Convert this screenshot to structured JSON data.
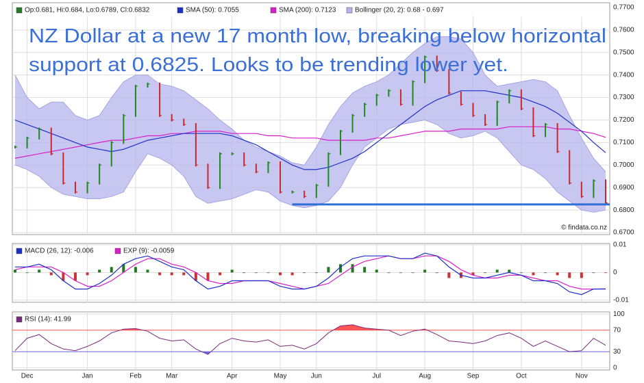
{
  "chart_data": [
    {
      "type": "stock",
      "annotation": [
        "NZ Dollar at a new 17 month low, breaking below horizontal",
        "support at 0.6825. Looks to be trending lower yet."
      ],
      "watermark": "© findata.co.nz",
      "ylim": [
        0.6691,
        0.7721
      ],
      "yticks": [
        {
          "value": 0.67,
          "label": "0.6700"
        },
        {
          "value": 0.68,
          "label": "0.6800"
        },
        {
          "value": 0.69,
          "label": "0.6900"
        },
        {
          "value": 0.7,
          "label": "0.7000"
        },
        {
          "value": 0.71,
          "label": "0.7100"
        },
        {
          "value": 0.72,
          "label": "0.7200"
        },
        {
          "value": 0.73,
          "label": "0.7300"
        },
        {
          "value": 0.74,
          "label": "0.7400"
        },
        {
          "value": 0.75,
          "label": "0.7500"
        },
        {
          "value": 0.76,
          "label": "0.7600"
        },
        {
          "value": 0.77,
          "label": "0.7700"
        }
      ],
      "support": 0.6825,
      "support_color": "#2f6fd6",
      "up_color": "#1a8a1a",
      "down_color": "#c82828",
      "series": [
        {
          "name": "Op:0.681, Hi:0.684, Lo:0.6789, Cl:0.6832",
          "color": "#2a7a2a",
          "values": [
            0.708,
            0.712,
            0.716,
            0.705,
            0.692,
            0.688,
            0.692,
            0.7,
            0.71,
            0.722,
            0.735,
            0.736,
            0.722,
            0.72,
            0.718,
            0.7,
            0.69,
            0.705,
            0.705,
            0.7,
            0.697,
            0.701,
            0.688,
            0.688,
            0.686,
            0.691,
            0.705,
            0.715,
            0.722,
            0.727,
            0.731,
            0.733,
            0.727,
            0.737,
            0.748,
            0.742,
            0.732,
            0.727,
            0.722,
            0.718,
            0.728,
            0.733,
            0.725,
            0.713,
            0.718,
            0.706,
            0.692,
            0.686,
            0.693,
            0.6832
          ]
        },
        {
          "name": "SMA (50): 0.7055",
          "color": "#1c2fc8",
          "values": [
            0.72,
            0.718,
            0.716,
            0.714,
            0.712,
            0.71,
            0.708,
            0.707,
            0.706,
            0.707,
            0.709,
            0.711,
            0.712,
            0.713,
            0.714,
            0.714,
            0.714,
            0.714,
            0.713,
            0.711,
            0.709,
            0.706,
            0.703,
            0.7,
            0.698,
            0.698,
            0.699,
            0.701,
            0.703,
            0.706,
            0.71,
            0.714,
            0.718,
            0.722,
            0.726,
            0.729,
            0.731,
            0.733,
            0.733,
            0.733,
            0.732,
            0.731,
            0.73,
            0.728,
            0.726,
            0.723,
            0.719,
            0.715,
            0.71,
            0.7055
          ]
        },
        {
          "name": "SMA (200): 0.7123",
          "color": "#d81ec8",
          "values": [
            0.703,
            0.704,
            0.705,
            0.706,
            0.707,
            0.708,
            0.709,
            0.71,
            0.711,
            0.711,
            0.712,
            0.713,
            0.713,
            0.714,
            0.714,
            0.715,
            0.715,
            0.715,
            0.714,
            0.714,
            0.714,
            0.713,
            0.713,
            0.712,
            0.712,
            0.712,
            0.711,
            0.711,
            0.711,
            0.711,
            0.712,
            0.712,
            0.713,
            0.714,
            0.715,
            0.715,
            0.715,
            0.716,
            0.716,
            0.716,
            0.716,
            0.717,
            0.717,
            0.717,
            0.717,
            0.716,
            0.716,
            0.715,
            0.714,
            0.7123
          ]
        },
        {
          "name": "Bollinger (20, 2): 0.68 - 0.697",
          "color": "#b4b4ee",
          "upper": [
            0.74,
            0.73,
            0.725,
            0.728,
            0.728,
            0.722,
            0.72,
            0.722,
            0.73,
            0.737,
            0.74,
            0.74,
            0.736,
            0.735,
            0.733,
            0.729,
            0.725,
            0.72,
            0.716,
            0.711,
            0.708,
            0.706,
            0.704,
            0.701,
            0.7,
            0.708,
            0.718,
            0.726,
            0.732,
            0.735,
            0.737,
            0.74,
            0.745,
            0.75,
            0.754,
            0.757,
            0.757,
            0.756,
            0.75,
            0.74,
            0.735,
            0.736,
            0.737,
            0.738,
            0.737,
            0.733,
            0.722,
            0.712,
            0.703,
            0.697
          ],
          "lower": [
            0.7,
            0.698,
            0.695,
            0.69,
            0.687,
            0.686,
            0.685,
            0.685,
            0.686,
            0.688,
            0.697,
            0.705,
            0.703,
            0.7,
            0.695,
            0.686,
            0.683,
            0.684,
            0.685,
            0.687,
            0.689,
            0.688,
            0.684,
            0.682,
            0.681,
            0.682,
            0.684,
            0.69,
            0.7,
            0.708,
            0.712,
            0.716,
            0.718,
            0.719,
            0.72,
            0.718,
            0.714,
            0.712,
            0.713,
            0.715,
            0.712,
            0.706,
            0.7,
            0.698,
            0.694,
            0.688,
            0.684,
            0.68,
            0.679,
            0.68
          ]
        }
      ]
    },
    {
      "type": "macd",
      "ylim": [
        -0.0108,
        0.0105
      ],
      "yticks": [
        0.01,
        0,
        -0.01
      ],
      "up_color": "#1f7a1f",
      "down_color": "#cc3333",
      "histogram": [
        0.001,
        0,
        0.001,
        -0.001,
        -0.003,
        -0.003,
        -0.001,
        0.001,
        0.002,
        0.003,
        0.002,
        0.001,
        -0.001,
        -0.001,
        -0.001,
        -0.003,
        -0.003,
        -0.001,
        0.001,
        0,
        0,
        0,
        -0.001,
        -0.001,
        0,
        0,
        0.002,
        0.003,
        0.003,
        0.002,
        0.001,
        0,
        0,
        0,
        0.001,
        0,
        -0.002,
        -0.002,
        -0.001,
        0,
        0.001,
        0.001,
        0,
        -0.001,
        0,
        -0.001,
        -0.002,
        -0.002,
        0,
        -0.0001
      ],
      "series": [
        {
          "name": "MACD (26, 12): -0.006",
          "color": "#1c2fc8",
          "values": [
            0.002,
            0.002,
            0.003,
            0.001,
            -0.003,
            -0.006,
            -0.006,
            -0.004,
            -0.001,
            0.003,
            0.005,
            0.006,
            0.004,
            0.002,
            0.001,
            -0.003,
            -0.006,
            -0.005,
            -0.003,
            -0.003,
            -0.003,
            -0.003,
            -0.005,
            -0.006,
            -0.006,
            -0.005,
            -0.002,
            0.002,
            0.005,
            0.006,
            0.006,
            0.006,
            0.005,
            0.005,
            0.007,
            0.006,
            0.002,
            -0.001,
            -0.002,
            -0.002,
            -0.001,
            0.0,
            -0.001,
            -0.003,
            -0.003,
            -0.004,
            -0.007,
            -0.008,
            -0.006,
            -0.006
          ]
        },
        {
          "name": "EXP (9): -0.0059",
          "color": "#d81ec8",
          "values": [
            0.001,
            0.002,
            0.002,
            0.002,
            0.0,
            -0.003,
            -0.005,
            -0.005,
            -0.003,
            0.0,
            0.003,
            0.005,
            0.005,
            0.003,
            0.002,
            0.0,
            -0.003,
            -0.004,
            -0.004,
            -0.003,
            -0.003,
            -0.003,
            -0.004,
            -0.005,
            -0.006,
            -0.005,
            -0.004,
            -0.001,
            0.002,
            0.004,
            0.005,
            0.006,
            0.005,
            0.005,
            0.006,
            0.006,
            0.004,
            0.001,
            -0.001,
            -0.002,
            -0.002,
            -0.001,
            -0.001,
            -0.002,
            -0.003,
            -0.003,
            -0.005,
            -0.006,
            -0.006,
            -0.0059
          ]
        }
      ]
    },
    {
      "type": "rsi",
      "ylim": [
        -4,
        104
      ],
      "yticks": [
        0,
        30,
        70,
        100
      ],
      "overbought": 70,
      "oversold": 30,
      "overbought_color": "#ff5555",
      "oversold_color": "#6a6ae8",
      "x": [
        null,
        "Dec",
        null,
        null,
        null,
        null,
        "Jan",
        null,
        null,
        null,
        "Feb",
        null,
        null,
        "Mar",
        null,
        null,
        null,
        null,
        "Apr",
        null,
        null,
        null,
        "May",
        null,
        null,
        "Jun",
        null,
        null,
        null,
        null,
        "Jul",
        null,
        null,
        null,
        "Aug",
        null,
        null,
        null,
        "Sep",
        null,
        null,
        null,
        "Oct",
        null,
        null,
        null,
        null,
        "Nov",
        null,
        null
      ],
      "series": [
        {
          "name": "RSI (14): 41.99",
          "color": "#7a2a7a",
          "values": [
            32,
            55,
            62,
            45,
            35,
            32,
            40,
            50,
            65,
            72,
            73,
            68,
            55,
            50,
            52,
            35,
            25,
            45,
            55,
            50,
            48,
            52,
            40,
            42,
            35,
            45,
            65,
            78,
            80,
            74,
            72,
            70,
            60,
            68,
            72,
            62,
            50,
            48,
            45,
            50,
            60,
            65,
            55,
            40,
            50,
            40,
            30,
            32,
            55,
            41.99
          ]
        }
      ]
    }
  ]
}
